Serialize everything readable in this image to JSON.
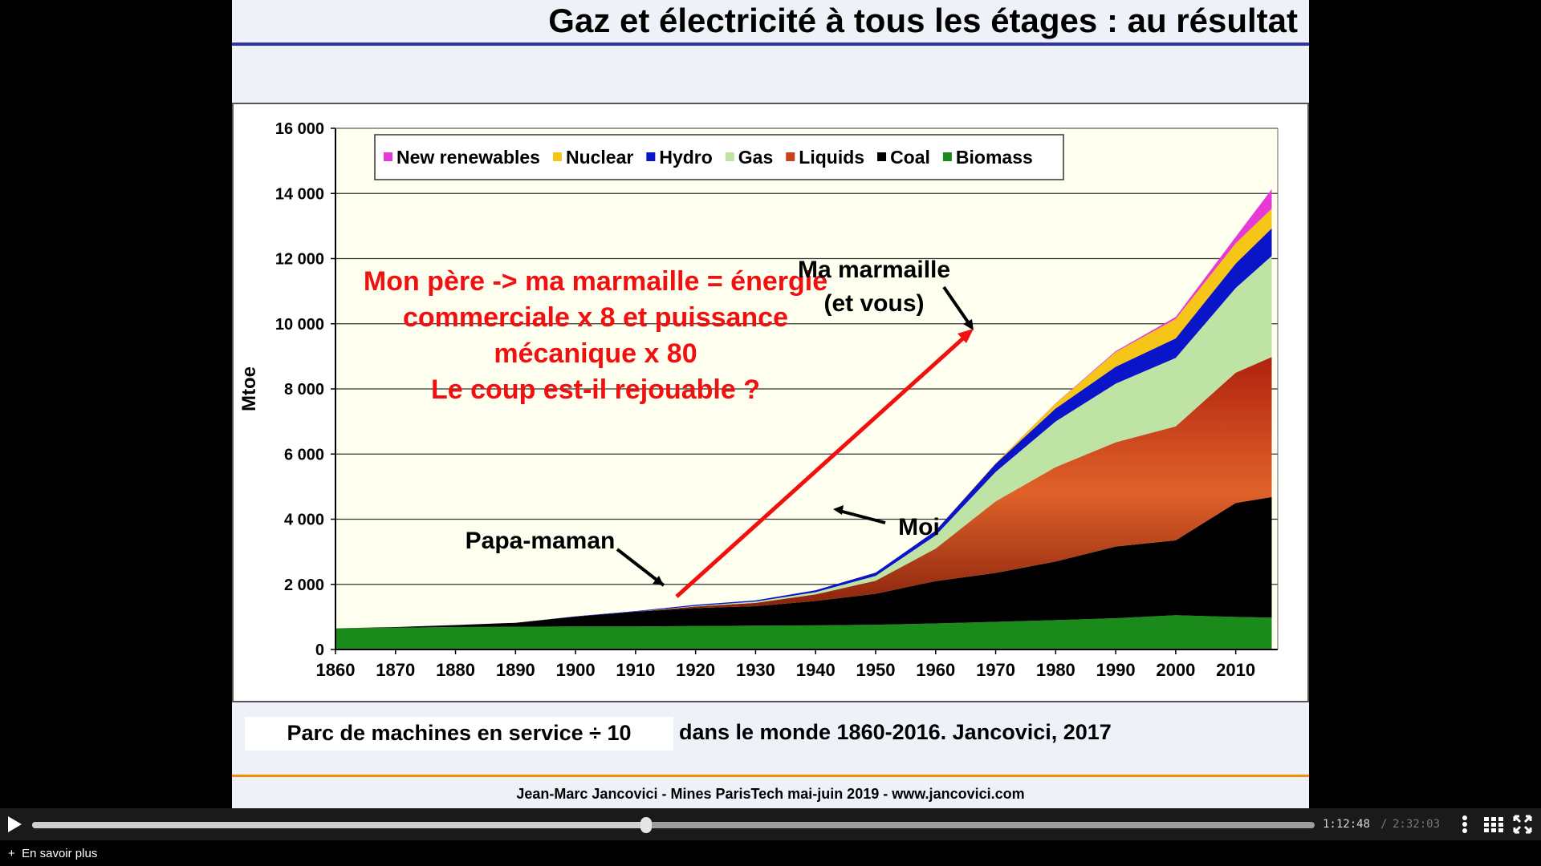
{
  "slide": {
    "title": "Gaz et électricité à tous les étages : au résultat",
    "caption_box": "Parc de machines en service ÷ 10",
    "caption_rest": "dans le monde 1860-2016. Jancovici, 2017",
    "footer": "Jean-Marc Jancovici - Mines ParisTech mai-juin 2019 - www.jancovici.com"
  },
  "chart_data": {
    "type": "area",
    "stacked": true,
    "ylabel": "Mtoe",
    "xlabel": "",
    "ylim": [
      0,
      16000
    ],
    "xlim": [
      1860,
      2017
    ],
    "yticks": [
      "0",
      "2 000",
      "4 000",
      "6 000",
      "8 000",
      "10 000",
      "12 000",
      "14 000",
      "16 000"
    ],
    "xticks": [
      "1860",
      "1870",
      "1880",
      "1890",
      "1900",
      "1910",
      "1920",
      "1930",
      "1940",
      "1950",
      "1960",
      "1970",
      "1980",
      "1990",
      "2000",
      "2010"
    ],
    "grid": "horizontal",
    "legend_position": "top",
    "x": [
      1860,
      1870,
      1880,
      1890,
      1900,
      1910,
      1920,
      1930,
      1940,
      1950,
      1960,
      1970,
      1980,
      1990,
      2000,
      2010,
      2016
    ],
    "series": [
      {
        "name": "Biomass",
        "color": "#1a8a1a",
        "values": [
          650,
          670,
          690,
          700,
          710,
          710,
          720,
          730,
          740,
          760,
          800,
          850,
          900,
          960,
          1050,
          1000,
          980
        ]
      },
      {
        "name": "Coal",
        "color": "#000000",
        "values": [
          0,
          20,
          60,
          120,
          300,
          450,
          550,
          600,
          750,
          950,
          1300,
          1500,
          1800,
          2200,
          2300,
          3500,
          3700
        ]
      },
      {
        "name": "Liquids",
        "color": "#c8401c",
        "values": [
          0,
          0,
          0,
          0,
          0,
          0,
          50,
          100,
          200,
          400,
          1000,
          2200,
          2900,
          3200,
          3500,
          4000,
          4300
        ]
      },
      {
        "name": "Gas",
        "color": "#bfe3a4",
        "values": [
          0,
          0,
          0,
          0,
          0,
          0,
          20,
          40,
          70,
          150,
          400,
          900,
          1400,
          1800,
          2100,
          2600,
          3100
        ]
      },
      {
        "name": "Hydro",
        "color": "#0a14c8",
        "values": [
          0,
          0,
          0,
          0,
          10,
          20,
          30,
          40,
          60,
          100,
          150,
          250,
          400,
          520,
          600,
          750,
          850
        ]
      },
      {
        "name": "Nuclear",
        "color": "#f5c518",
        "values": [
          0,
          0,
          0,
          0,
          0,
          0,
          0,
          0,
          0,
          0,
          5,
          20,
          150,
          450,
          600,
          620,
          600
        ]
      },
      {
        "name": "New renewables",
        "color": "#e53ad6",
        "values": [
          0,
          0,
          0,
          0,
          0,
          0,
          0,
          0,
          0,
          0,
          0,
          0,
          10,
          30,
          60,
          200,
          600
        ]
      }
    ],
    "legend": [
      {
        "label": "New renewables",
        "color": "#e53ad6"
      },
      {
        "label": "Nuclear",
        "color": "#f5c518"
      },
      {
        "label": "Hydro",
        "color": "#0a14c8"
      },
      {
        "label": "Gas",
        "color": "#bfe3a4"
      },
      {
        "label": "Liquids",
        "color": "#c8401c"
      },
      {
        "label": "Coal",
        "color": "#000000"
      },
      {
        "label": "Biomass",
        "color": "#1a8a1a"
      }
    ],
    "annotations": {
      "red_text": [
        "Mon père -> ma marmaille = énergie",
        "commerciale x 8 et puissance",
        "mécanique x 80",
        "Le coup est-il rejouable ?"
      ],
      "papa": "Papa-maman",
      "moi": "Moi",
      "marmaille": [
        "Ma marmaille",
        "(et vous)"
      ]
    }
  },
  "player": {
    "time_current": "1:12:48",
    "time_separator": "/",
    "time_total": "2:32:03",
    "progress": 0.479,
    "icons": [
      "play-icon",
      "more-vertical-icon",
      "chapters-grid-icon",
      "fullscreen-icon"
    ],
    "more_link": "En savoir plus"
  }
}
